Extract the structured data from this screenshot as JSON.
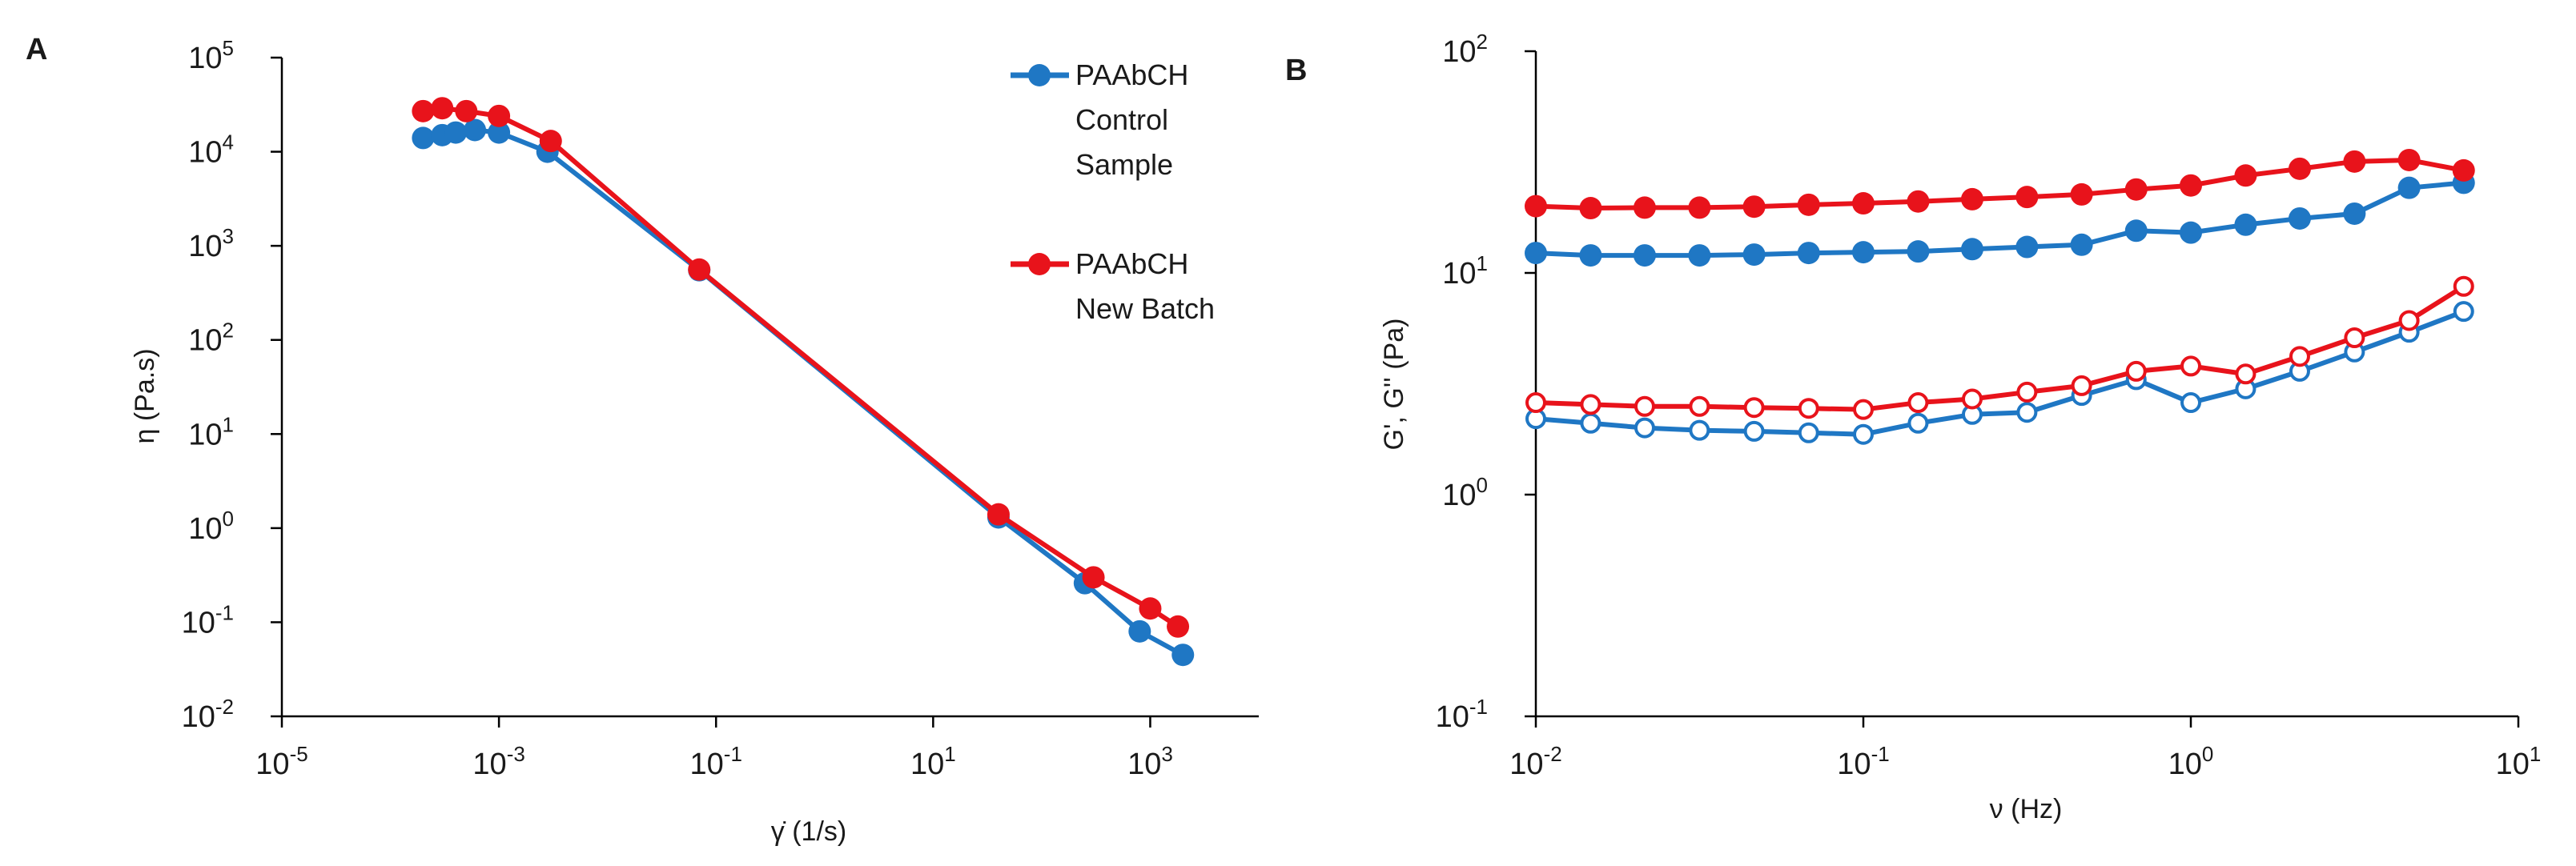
{
  "chart_data": [
    {
      "panel_label": "A",
      "type": "line",
      "scale": {
        "x": "log",
        "y": "log"
      },
      "xlim": [
        1e-05,
        10000
      ],
      "ylim": [
        0.01,
        100000
      ],
      "xlabel": "γ̇ (1/s)",
      "ylabel": "η (Pa.s)",
      "x_ticks": [
        {
          "value": 1e-05,
          "base": "10",
          "exp": "-5"
        },
        {
          "value": 0.001,
          "base": "10",
          "exp": "-3"
        },
        {
          "value": 0.1,
          "base": "10",
          "exp": "-1"
        },
        {
          "value": 10,
          "base": "10",
          "exp": "1"
        },
        {
          "value": 1000,
          "base": "10",
          "exp": "3"
        }
      ],
      "y_ticks": [
        {
          "value": 0.01,
          "base": "10",
          "exp": "-2"
        },
        {
          "value": 0.1,
          "base": "10",
          "exp": "-1"
        },
        {
          "value": 1,
          "base": "10",
          "exp": "0"
        },
        {
          "value": 10,
          "base": "10",
          "exp": "1"
        },
        {
          "value": 100,
          "base": "10",
          "exp": "2"
        },
        {
          "value": 1000,
          "base": "10",
          "exp": "3"
        },
        {
          "value": 10000,
          "base": "10",
          "exp": "4"
        },
        {
          "value": 100000,
          "base": "10",
          "exp": "5"
        }
      ],
      "legend": {
        "placement": "top-right",
        "entries": [
          {
            "series": "PAAbCH Control Sample",
            "lines": [
              "PAAbCH",
              "Control",
              "Sample"
            ]
          },
          {
            "series": "PAAbCH New Batch",
            "lines": [
              "PAAbCH",
              "New Batch"
            ]
          }
        ]
      },
      "series": [
        {
          "name": "PAAbCH Control Sample",
          "color": "#1f77c4",
          "marker": "filled-circle",
          "x": [
            0.0002,
            0.0003,
            0.0004,
            0.0006,
            0.001,
            0.0028,
            0.07,
            40,
            250,
            800,
            2000
          ],
          "y": [
            14000,
            15000,
            16000,
            17000,
            16000,
            10000,
            550,
            1.3,
            0.26,
            0.08,
            0.045
          ]
        },
        {
          "name": "PAAbCH New Batch",
          "color": "#e8131b",
          "marker": "filled-circle",
          "x": [
            0.0002,
            0.0003,
            0.0005,
            0.001,
            0.003,
            0.07,
            40,
            300,
            1000,
            1800
          ],
          "y": [
            27000,
            29000,
            27000,
            24000,
            13000,
            560,
            1.4,
            0.3,
            0.14,
            0.09
          ]
        }
      ]
    },
    {
      "panel_label": "B",
      "type": "line",
      "scale": {
        "x": "log",
        "y": "log"
      },
      "xlim": [
        0.01,
        10
      ],
      "ylim": [
        0.1,
        100
      ],
      "xlabel": "ν (Hz)",
      "ylabel": "G', G'' (Pa)",
      "x_ticks": [
        {
          "value": 0.01,
          "base": "10",
          "exp": "-2"
        },
        {
          "value": 0.1,
          "base": "10",
          "exp": "-1"
        },
        {
          "value": 1,
          "base": "10",
          "exp": "0"
        },
        {
          "value": 10,
          "base": "10",
          "exp": "1"
        }
      ],
      "y_ticks": [
        {
          "value": 0.1,
          "base": "10",
          "exp": "-1"
        },
        {
          "value": 1,
          "base": "10",
          "exp": "0"
        },
        {
          "value": 10,
          "base": "10",
          "exp": "1"
        },
        {
          "value": 100,
          "base": "10",
          "exp": "2"
        }
      ],
      "x": [
        0.01,
        0.0147,
        0.0215,
        0.0316,
        0.0464,
        0.0681,
        0.1,
        0.147,
        0.215,
        0.316,
        0.464,
        0.681,
        1,
        1.47,
        2.15,
        3.16,
        4.64,
        6.81
      ],
      "series": [
        {
          "name": "G' Control Sample",
          "color": "#1f77c4",
          "marker": "filled-circle",
          "values": [
            12.3,
            12.0,
            12.0,
            12.0,
            12.1,
            12.3,
            12.4,
            12.5,
            12.8,
            13.1,
            13.4,
            15.5,
            15.2,
            16.5,
            17.6,
            18.5,
            24.2,
            25.5
          ]
        },
        {
          "name": "G' New Batch",
          "color": "#e8131b",
          "marker": "filled-circle",
          "values": [
            20.0,
            19.6,
            19.7,
            19.7,
            19.9,
            20.3,
            20.6,
            21.0,
            21.5,
            22.0,
            22.6,
            23.8,
            24.8,
            27.5,
            29.5,
            31.8,
            32.3,
            29.0
          ]
        },
        {
          "name": "G'' Control Sample",
          "color": "#1f77c4",
          "marker": "open-circle",
          "values": [
            2.2,
            2.1,
            2.0,
            1.95,
            1.93,
            1.9,
            1.87,
            2.1,
            2.3,
            2.35,
            2.8,
            3.3,
            2.6,
            3.0,
            3.6,
            4.4,
            5.4,
            6.7
          ]
        },
        {
          "name": "G'' New Batch",
          "color": "#e8131b",
          "marker": "open-circle",
          "values": [
            2.6,
            2.55,
            2.5,
            2.5,
            2.47,
            2.45,
            2.42,
            2.6,
            2.7,
            2.9,
            3.1,
            3.6,
            3.8,
            3.5,
            4.2,
            5.1,
            6.1,
            8.7
          ]
        }
      ]
    }
  ]
}
